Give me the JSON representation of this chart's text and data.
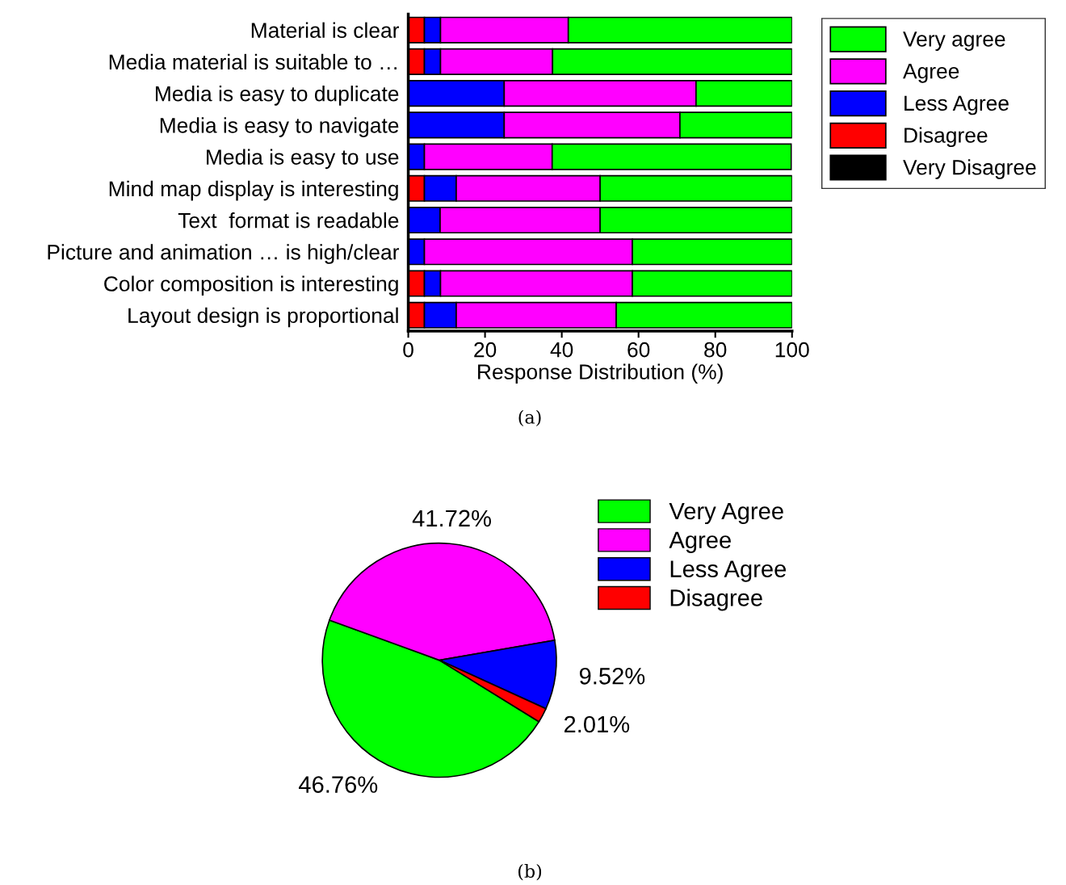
{
  "chart_data": [
    {
      "type": "bar",
      "orientation": "horizontal",
      "stacked": true,
      "xlabel": "Response Distribution (%)",
      "categories": [
        "Material is clear",
        "Media material is suitable to …",
        "Media is easy to duplicate",
        "Media is easy to navigate",
        "Media is easy to use",
        "Mind map display is interesting",
        "Text  format is readable",
        "Picture and animation … is high/clear",
        "Color composition is interesting",
        "Layout design is proportional"
      ],
      "series": [
        {
          "name": "Very Disagree",
          "color": "#000000",
          "values": [
            0,
            0,
            0,
            0,
            0,
            0,
            0,
            0,
            0,
            0
          ]
        },
        {
          "name": "Disagree",
          "color": "#ff0000",
          "values": [
            4.2,
            4.2,
            0,
            0,
            0,
            4.2,
            0,
            0,
            4.2,
            4.2
          ]
        },
        {
          "name": "Less Agree",
          "color": "#0000ff",
          "values": [
            4.2,
            4.2,
            25.0,
            25.0,
            4.2,
            8.3,
            8.3,
            4.2,
            4.2,
            8.3
          ]
        },
        {
          "name": "Agree",
          "color": "#ff00ff",
          "values": [
            33.3,
            29.2,
            50.0,
            45.8,
            33.3,
            37.5,
            41.7,
            54.2,
            50.0,
            41.7
          ]
        },
        {
          "name": "Very agree",
          "color": "#00ff00",
          "values": [
            58.3,
            62.4,
            25.0,
            29.2,
            62.3,
            50.0,
            50.0,
            41.6,
            41.6,
            45.8
          ]
        }
      ],
      "xlim": [
        0,
        100
      ],
      "xticks": [
        0,
        20,
        40,
        60,
        80,
        100
      ],
      "legend": "right",
      "grid": false,
      "annotations": [
        "(a)"
      ]
    },
    {
      "type": "pie",
      "categories": [
        "Very Agree",
        "Agree",
        "Less Agree",
        "Disagree"
      ],
      "values": [
        46.76,
        41.72,
        9.52,
        2.01
      ],
      "colors": [
        "#00ff00",
        "#ff00ff",
        "#0000ff",
        "#ff0000"
      ],
      "value_labels": [
        "46.76%",
        "41.72%",
        "9.52%",
        "2.01%"
      ],
      "legend": "top right",
      "annotations": [
        "(b)"
      ]
    }
  ]
}
